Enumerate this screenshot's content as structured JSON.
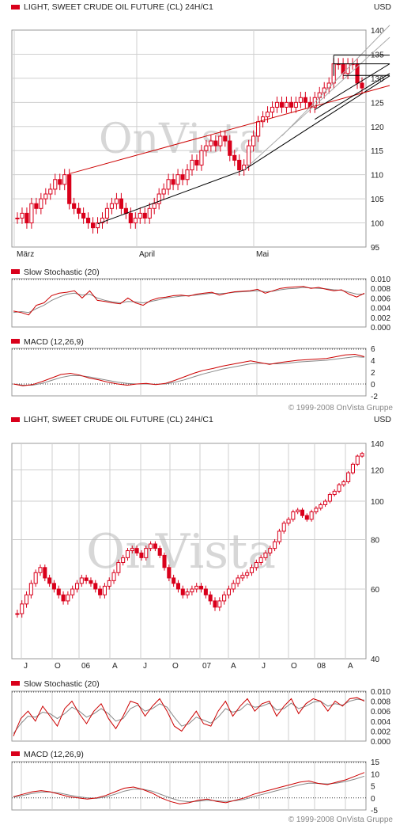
{
  "panels": [
    {
      "title": "LIGHT, SWEET CRUDE OIL FUTURE (CL) 24H/C1",
      "currency": "USD",
      "watermark": "OnVista",
      "copyright": "© 1999-2008 OnVista Gruppe",
      "stochastic_label": "Slow Stochastic (20)",
      "macd_label": "MACD (12,26,9)"
    },
    {
      "title": "LIGHT, SWEET CRUDE OIL FUTURE (CL) 24H/C1",
      "currency": "USD",
      "watermark": "OnVista",
      "copyright": "© 1999-2008 OnVista Gruppe",
      "stochastic_label": "Slow Stochastic (20)",
      "macd_label": "MACD (12,26,9)"
    }
  ],
  "colors": {
    "candle": "#d9001b",
    "trend_black": "#000000",
    "trend_red": "#cc0000",
    "signal": "#888888",
    "grid": "#cfcfcf"
  },
  "chart_data": [
    {
      "type": "candlestick",
      "title": "LIGHT, SWEET CRUDE OIL FUTURE (CL) 24H/C1",
      "ylabel": "USD",
      "ylim": [
        95,
        140
      ],
      "yticks": [
        95,
        100,
        105,
        110,
        115,
        120,
        125,
        130,
        135,
        140
      ],
      "xticks": [
        "März",
        "April",
        "Mai"
      ],
      "closes": [
        101,
        102,
        100,
        104,
        103,
        105,
        106,
        107,
        109,
        108,
        110,
        104,
        103,
        102,
        101,
        100,
        99,
        100,
        101,
        103,
        104,
        105,
        103,
        102,
        100,
        101,
        102,
        101,
        103,
        104,
        106,
        107,
        109,
        108,
        110,
        109,
        111,
        113,
        112,
        115,
        116,
        117,
        116,
        118,
        117,
        114,
        113,
        111,
        112,
        116,
        118,
        121,
        122,
        123,
        124,
        125,
        124,
        125,
        124,
        125,
        126,
        125,
        124,
        126,
        127,
        128,
        129,
        133,
        133,
        131,
        133,
        133,
        129,
        128
      ],
      "trendlines": [
        "support",
        "resistance",
        "channel"
      ],
      "grid": true
    },
    {
      "type": "line",
      "title": "Slow Stochastic (20)",
      "ylim": [
        0,
        0.01
      ],
      "yticks": [
        "0.010",
        "0.008",
        "0.006",
        "0.004",
        "0.002",
        "0.000"
      ],
      "series": [
        {
          "values": [
            0.0033,
            0.003,
            0.0025,
            0.0045,
            0.005,
            0.0065,
            0.007,
            0.0072,
            0.0075,
            0.006,
            0.0075,
            0.0055,
            0.0053,
            0.005,
            0.0048,
            0.006,
            0.005,
            0.0045,
            0.0055,
            0.006,
            0.0062,
            0.0065,
            0.0066,
            0.0064,
            0.0068,
            0.007,
            0.0072,
            0.0066,
            0.007,
            0.0073,
            0.0074,
            0.0075,
            0.0078,
            0.007,
            0.0075,
            0.008,
            0.0082,
            0.0083,
            0.0084,
            0.008,
            0.0082,
            0.0078,
            0.0075,
            0.0077,
            0.0068,
            0.0062,
            0.007
          ]
        },
        {
          "values": [
            0.003,
            0.0032,
            0.003,
            0.0038,
            0.0045,
            0.0055,
            0.0062,
            0.0068,
            0.007,
            0.0066,
            0.0068,
            0.006,
            0.0055,
            0.0052,
            0.005,
            0.0053,
            0.0052,
            0.005,
            0.0053,
            0.0056,
            0.006,
            0.0062,
            0.0064,
            0.0065,
            0.0066,
            0.0068,
            0.007,
            0.0069,
            0.007,
            0.0072,
            0.0073,
            0.0074,
            0.0075,
            0.0073,
            0.0074,
            0.0077,
            0.0079,
            0.008,
            0.0082,
            0.0081,
            0.008,
            0.0079,
            0.0077,
            0.0076,
            0.0072,
            0.0068,
            0.0068
          ]
        }
      ]
    },
    {
      "type": "line",
      "title": "MACD (12,26,9)",
      "ylim": [
        -2,
        6
      ],
      "yticks": [
        "6",
        "4",
        "2",
        "0",
        "-2"
      ],
      "series": [
        {
          "values": [
            0,
            -0.3,
            -0.1,
            0.4,
            1.0,
            1.6,
            1.8,
            1.5,
            1.0,
            0.7,
            0.3,
            0,
            -0.2,
            0,
            0.1,
            -0.1,
            0.1,
            0.6,
            1.2,
            1.8,
            2.3,
            2.6,
            3.0,
            3.3,
            3.6,
            3.9,
            3.6,
            3.3,
            3.6,
            3.8,
            4.0,
            4.1,
            4.2,
            4.3,
            4.6,
            4.9,
            5.0,
            4.6
          ]
        },
        {
          "values": [
            0,
            -0.2,
            -0.2,
            0.1,
            0.6,
            1.1,
            1.4,
            1.4,
            1.2,
            0.9,
            0.6,
            0.3,
            0.1,
            0,
            0,
            -0.05,
            0,
            0.3,
            0.7,
            1.2,
            1.7,
            2.1,
            2.5,
            2.8,
            3.1,
            3.4,
            3.5,
            3.4,
            3.4,
            3.5,
            3.7,
            3.8,
            3.9,
            4.0,
            4.2,
            4.4,
            4.6,
            4.5
          ]
        }
      ]
    },
    {
      "type": "candlestick",
      "title": "LIGHT, SWEET CRUDE OIL FUTURE (CL) 24H/C1",
      "ylabel": "USD",
      "yscale": "log",
      "ylim": [
        40,
        140
      ],
      "yticks": [
        40,
        60,
        80,
        100,
        120,
        140
      ],
      "xticks": [
        "J",
        "O",
        "06",
        "A",
        "J",
        "O",
        "07",
        "A",
        "J",
        "O",
        "08",
        "A"
      ],
      "closes": [
        52,
        55,
        58,
        62,
        66,
        68,
        64,
        62,
        60,
        58,
        56,
        58,
        60,
        62,
        64,
        63,
        62,
        60,
        58,
        61,
        63,
        66,
        70,
        72,
        75,
        76,
        74,
        72,
        76,
        78,
        76,
        73,
        68,
        64,
        62,
        60,
        58,
        59,
        60,
        61,
        60,
        58,
        56,
        54,
        56,
        58,
        60,
        62,
        64,
        65,
        66,
        68,
        70,
        72,
        74,
        76,
        79,
        84,
        88,
        90,
        94,
        95,
        92,
        90,
        94,
        96,
        98,
        100,
        104,
        106,
        110,
        112,
        118,
        124,
        130,
        132
      ],
      "grid": true
    },
    {
      "type": "line",
      "title": "Slow Stochastic (20)",
      "ylim": [
        0,
        0.01
      ],
      "yticks": [
        "0.010",
        "0.008",
        "0.006",
        "0.004",
        "0.002",
        "0.000"
      ],
      "series": [
        {
          "values": [
            0.001,
            0.0045,
            0.006,
            0.004,
            0.007,
            0.005,
            0.003,
            0.0065,
            0.008,
            0.0055,
            0.0035,
            0.006,
            0.0075,
            0.0045,
            0.0025,
            0.005,
            0.008,
            0.0075,
            0.005,
            0.007,
            0.0085,
            0.006,
            0.003,
            0.002,
            0.004,
            0.006,
            0.0035,
            0.003,
            0.006,
            0.008,
            0.005,
            0.007,
            0.0085,
            0.006,
            0.0075,
            0.008,
            0.005,
            0.007,
            0.0085,
            0.0055,
            0.0075,
            0.0085,
            0.008,
            0.006,
            0.008,
            0.007,
            0.0085,
            0.0087,
            0.008
          ]
        },
        {
          "values": [
            0.0015,
            0.0035,
            0.005,
            0.0048,
            0.0058,
            0.0055,
            0.0045,
            0.0055,
            0.0068,
            0.006,
            0.0048,
            0.0055,
            0.0065,
            0.0055,
            0.004,
            0.0045,
            0.0065,
            0.0072,
            0.006,
            0.0065,
            0.0075,
            0.0068,
            0.0048,
            0.003,
            0.0035,
            0.0048,
            0.0042,
            0.0036,
            0.0048,
            0.0065,
            0.0058,
            0.0062,
            0.0075,
            0.0068,
            0.007,
            0.0076,
            0.0062,
            0.0065,
            0.0076,
            0.0065,
            0.007,
            0.0078,
            0.008,
            0.007,
            0.0075,
            0.0072,
            0.008,
            0.0084,
            0.0082
          ]
        }
      ]
    },
    {
      "type": "line",
      "title": "MACD (12,26,9)",
      "ylim": [
        -5,
        15
      ],
      "yticks": [
        "15",
        "10",
        "5",
        "0",
        "-5"
      ],
      "series": [
        {
          "values": [
            0.5,
            1.5,
            2.5,
            3.0,
            2.5,
            1.5,
            0.5,
            0,
            -0.5,
            0,
            1.0,
            2.5,
            4.0,
            4.5,
            3.5,
            2.0,
            0,
            -1.5,
            -2.5,
            -2.0,
            -1.0,
            -0.5,
            -1.5,
            -2.0,
            -1.0,
            0,
            1.5,
            2.5,
            3.5,
            4.5,
            5.5,
            6.5,
            7.0,
            6.0,
            5.5,
            6.5,
            7.5,
            9.0,
            10.5
          ]
        },
        {
          "values": [
            0.3,
            1.0,
            1.8,
            2.4,
            2.4,
            2.0,
            1.2,
            0.5,
            0,
            -0.2,
            0.4,
            1.5,
            2.8,
            3.6,
            3.6,
            2.8,
            1.4,
            0,
            -1.2,
            -1.6,
            -1.4,
            -1.0,
            -1.2,
            -1.5,
            -1.2,
            -0.6,
            0.5,
            1.5,
            2.5,
            3.5,
            4.4,
            5.4,
            6.1,
            6.0,
            5.8,
            6.1,
            6.8,
            7.8,
            9.0
          ]
        }
      ]
    }
  ]
}
